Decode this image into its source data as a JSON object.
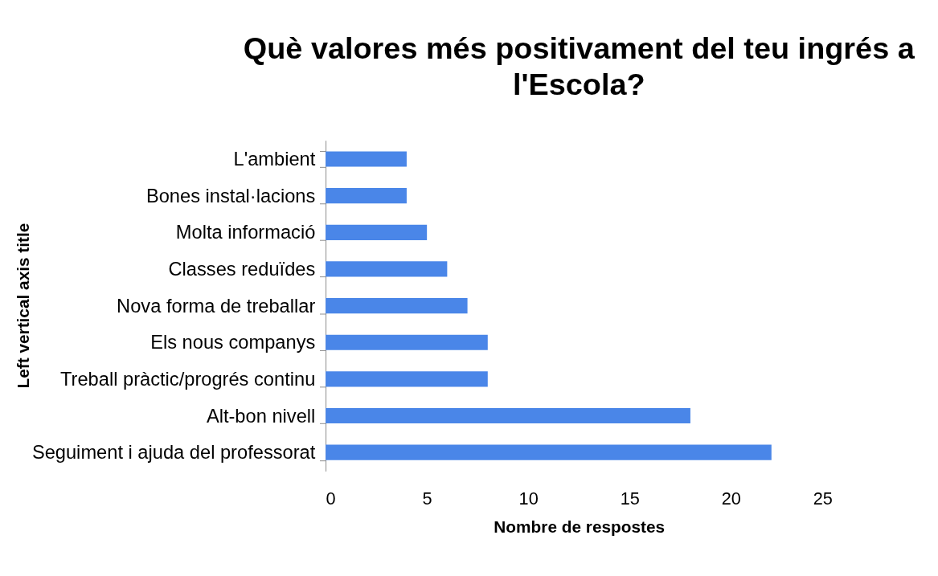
{
  "chart_data": {
    "type": "bar",
    "orientation": "horizontal",
    "title": "Què valores més positivament del teu ingrés a l'Escola?",
    "xlabel": "Nombre de respostes",
    "ylabel": "Left vertical axis title",
    "categories": [
      "L'ambient",
      "Bones instal·lacions",
      "Molta informació",
      "Classes reduïdes",
      "Nova forma de treballar",
      "Els nous companys",
      "Treball pràctic/progrés continu",
      "Alt-bon nivell",
      "Seguiment i ajuda del professorat"
    ],
    "values": [
      4,
      4,
      5,
      6,
      7,
      8,
      8,
      18,
      22
    ],
    "color": "#4a86e8",
    "xlim": [
      0,
      25
    ],
    "xticks": [
      0,
      5,
      10,
      15,
      20,
      25
    ],
    "grid": false,
    "legend": false
  }
}
